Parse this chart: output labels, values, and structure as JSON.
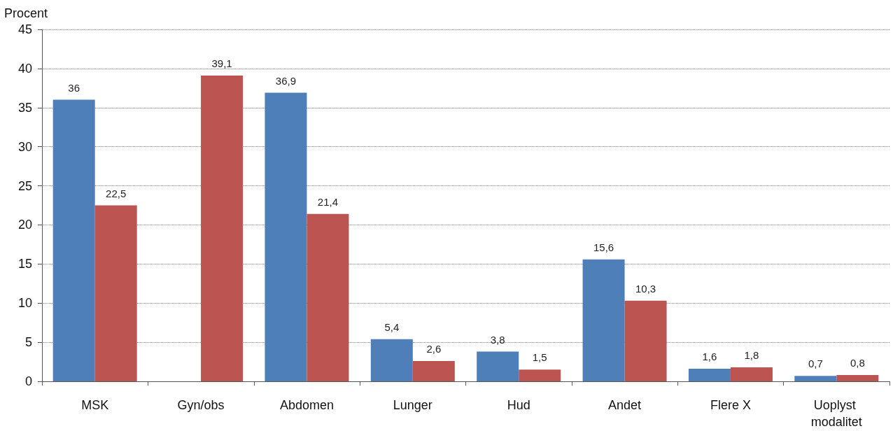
{
  "chart_data": {
    "type": "bar",
    "ylabel": "Procent",
    "categories": [
      "MSK",
      "Gyn/obs",
      "Abdomen",
      "Lunger",
      "Hud",
      "Andet",
      "Flere X",
      "Uoplyst modalitet"
    ],
    "series": [
      {
        "color": "#4f7fb8",
        "values": [
          36,
          null,
          36.9,
          5.4,
          3.8,
          15.6,
          1.6,
          0.7
        ],
        "value_labels": [
          "36",
          null,
          "36,9",
          "5,4",
          "3,8",
          "15,6",
          "1,6",
          "0,7"
        ]
      },
      {
        "color": "#bc5552",
        "values": [
          22.5,
          39.1,
          21.4,
          2.6,
          1.5,
          10.3,
          1.8,
          0.8
        ],
        "value_labels": [
          "22,5",
          "39,1",
          "21,4",
          "2,6",
          "1,5",
          "10,3",
          "1,8",
          "0,8"
        ]
      }
    ],
    "ylim": [
      0,
      45
    ],
    "yticks": [
      0,
      5,
      10,
      15,
      20,
      25,
      30,
      35,
      40,
      45
    ],
    "grid": "y"
  }
}
